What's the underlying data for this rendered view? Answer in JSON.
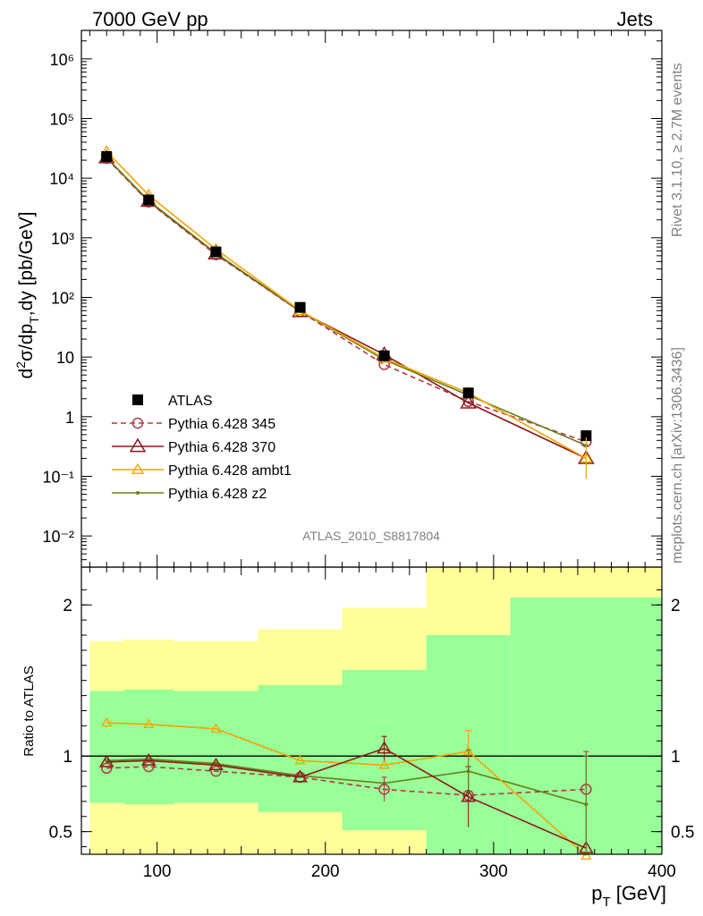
{
  "header": {
    "left_label": "7000 GeV pp",
    "right_label": "Jets"
  },
  "side_labels": {
    "rivet": "Rivet 3.1.10, ≥ 2.7M events",
    "mcplots": "mcplots.cern.ch [arXiv:1306.3436]"
  },
  "analysis_id": "ATLAS_2010_S8817804",
  "colors": {
    "atlas": "#000000",
    "p345": "#b03a48",
    "p370": "#8b1a1a",
    "ambt1": "#f5a300",
    "z2": "#6b7f1a",
    "band_inner": "#99ff99",
    "band_outer": "#ffff99"
  },
  "chart_data": [
    {
      "type": "line",
      "panel": "main",
      "ylabel": "d²σ/dp_T,dy [pb/GeV]",
      "yscale": "log",
      "ylim": [
        0.003,
        3000000
      ],
      "xlim": [
        55,
        400
      ],
      "y_ticks": [
        {
          "v": 0.01,
          "label": "10⁻²"
        },
        {
          "v": 0.1,
          "label": "10⁻¹"
        },
        {
          "v": 1,
          "label": "1"
        },
        {
          "v": 10,
          "label": "10"
        },
        {
          "v": 100,
          "label": "10²"
        },
        {
          "v": 1000,
          "label": "10³"
        },
        {
          "v": 10000,
          "label": "10⁴"
        },
        {
          "v": 100000,
          "label": "10⁵"
        },
        {
          "v": 1000000,
          "label": "10⁶"
        }
      ],
      "x": [
        70,
        95,
        135,
        185,
        235,
        285,
        355
      ],
      "legend_position": "lower-left",
      "series": [
        {
          "name": "ATLAS",
          "key": "atlas",
          "style": "square",
          "values": [
            23000,
            4300,
            580,
            68,
            10.5,
            2.5,
            0.48
          ]
        },
        {
          "name": "Pythia 6.428 345",
          "key": "p345",
          "style": "circle-dashed",
          "values": [
            21500,
            4000,
            520,
            58,
            7.5,
            1.8,
            0.38
          ]
        },
        {
          "name": "Pythia 6.428 370",
          "key": "p370",
          "style": "triangle",
          "values": [
            22000,
            4100,
            540,
            58,
            11,
            1.7,
            0.2
          ]
        },
        {
          "name": "Pythia 6.428 ambt1",
          "key": "ambt1",
          "style": "triangle-small",
          "values": [
            28000,
            5200,
            640,
            60,
            9.5,
            2.5,
            0.2
          ]
        },
        {
          "name": "Pythia 6.428 z2",
          "key": "z2",
          "style": "dot",
          "values": [
            22200,
            4200,
            550,
            59,
            9.0,
            2.3,
            0.33
          ]
        }
      ]
    },
    {
      "type": "line",
      "panel": "ratio",
      "ylabel": "Ratio to ATLAS",
      "xlabel": "p_T [GeV]",
      "ylim": [
        0.35,
        2.25
      ],
      "xlim": [
        55,
        400
      ],
      "x_ticks": [
        100,
        200,
        300,
        400
      ],
      "y_ticks": [
        {
          "v": 0.5,
          "label": "0.5"
        },
        {
          "v": 1,
          "label": "1"
        },
        {
          "v": 2,
          "label": "2"
        }
      ],
      "bins": [
        [
          60,
          80
        ],
        [
          80,
          110
        ],
        [
          110,
          160
        ],
        [
          160,
          210
        ],
        [
          210,
          260
        ],
        [
          260,
          310
        ],
        [
          310,
          400
        ]
      ],
      "band_inner": [
        [
          0.69,
          1.43
        ],
        [
          0.68,
          1.44
        ],
        [
          0.69,
          1.43
        ],
        [
          0.63,
          1.47
        ],
        [
          0.51,
          1.57
        ],
        [
          0.35,
          1.8
        ],
        [
          0.35,
          2.05
        ]
      ],
      "band_outer": [
        [
          0.35,
          1.76
        ],
        [
          0.35,
          1.77
        ],
        [
          0.35,
          1.76
        ],
        [
          0.35,
          1.84
        ],
        [
          0.35,
          1.98
        ],
        [
          0.35,
          2.25
        ],
        [
          0.35,
          2.25
        ]
      ],
      "x": [
        70,
        95,
        135,
        185,
        235,
        285,
        355
      ],
      "series": [
        {
          "name": "Pythia 6.428 345",
          "key": "p345",
          "values": [
            0.92,
            0.93,
            0.9,
            0.86,
            0.78,
            0.74,
            0.78
          ]
        },
        {
          "name": "Pythia 6.428 370",
          "key": "p370",
          "values": [
            0.96,
            0.97,
            0.94,
            0.86,
            1.05,
            0.73,
            0.39
          ]
        },
        {
          "name": "Pythia 6.428 ambt1",
          "key": "ambt1",
          "values": [
            1.22,
            1.21,
            1.18,
            0.97,
            0.94,
            1.03,
            0.34
          ]
        },
        {
          "name": "Pythia 6.428 z2",
          "key": "z2",
          "values": [
            0.97,
            0.98,
            0.95,
            0.87,
            0.82,
            0.9,
            0.68
          ]
        }
      ]
    }
  ]
}
